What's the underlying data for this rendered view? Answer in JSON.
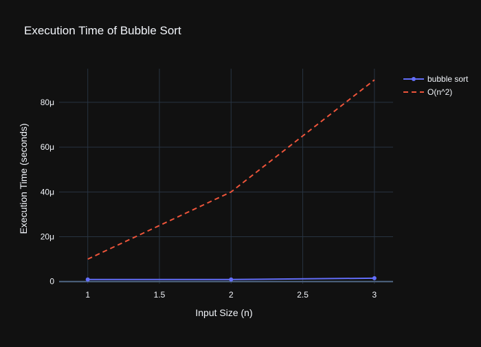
{
  "chart_data": {
    "type": "line",
    "title": "Execution Time of Bubble Sort",
    "xlabel": "Input Size (n)",
    "ylabel": "Execution Time (seconds)",
    "x": [
      1,
      2,
      3
    ],
    "xlim": [
      0.8,
      3.13
    ],
    "ylim": [
      -1e-06,
      9.5e-05
    ],
    "x_ticks": [
      1,
      1.5,
      2,
      2.5,
      3
    ],
    "x_tick_labels": [
      "1",
      "1.5",
      "2",
      "2.5",
      "3"
    ],
    "y_ticks": [
      0,
      2e-05,
      4e-05,
      6e-05,
      8e-05
    ],
    "y_tick_labels": [
      "0",
      "20μ",
      "40μ",
      "60μ",
      "80μ"
    ],
    "grid": true,
    "legend_position": "top-right",
    "series": [
      {
        "name": "bubble sort",
        "values": [
          9e-07,
          9e-07,
          1.5e-06
        ],
        "color": "#636efa",
        "style": "lines+markers"
      },
      {
        "name": "O(n^2)",
        "values": [
          1e-05,
          4e-05,
          9e-05
        ],
        "color": "#ef553b",
        "style": "dash"
      }
    ],
    "colors": {
      "background": "#111111",
      "grid": "#283442",
      "text": "#f2f5fa",
      "zeroline": "#506784"
    }
  }
}
